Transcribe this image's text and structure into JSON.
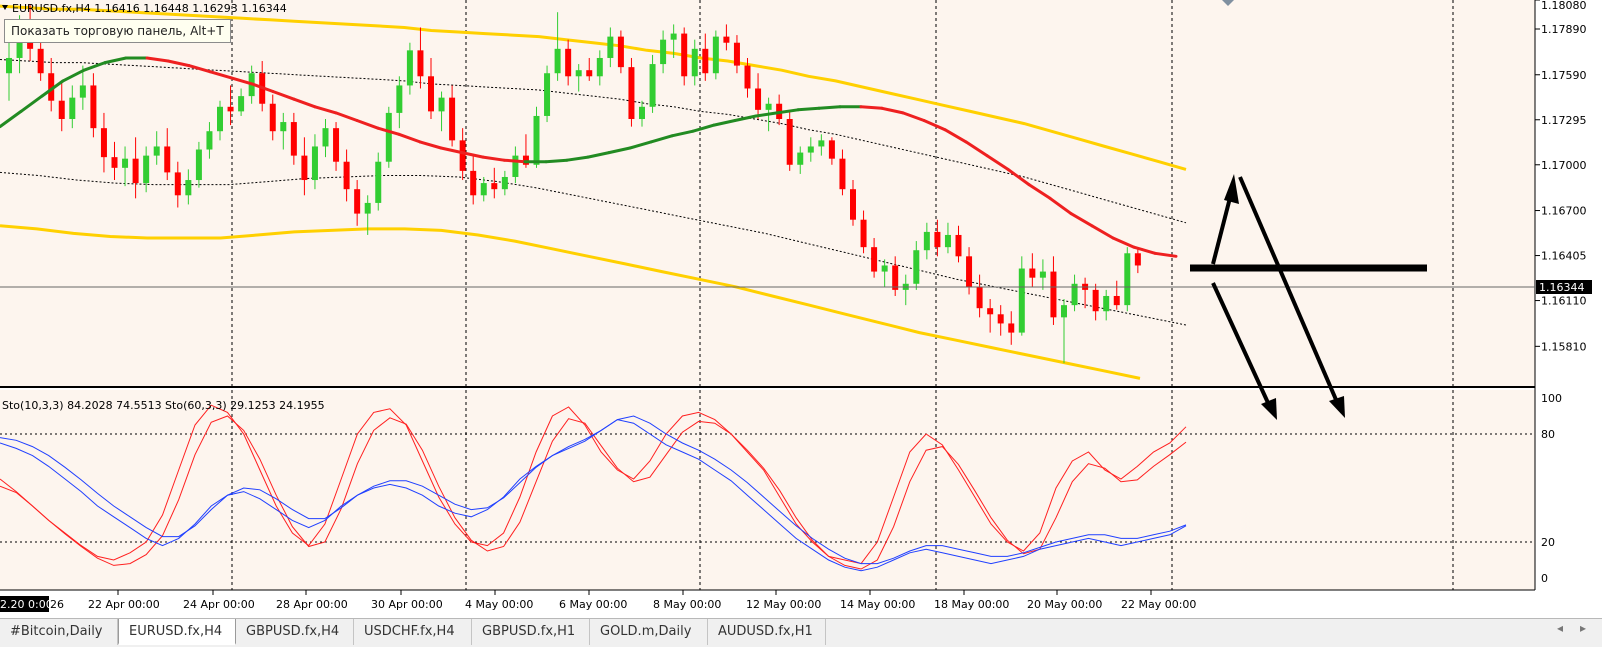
{
  "header": {
    "symbol_line": "EURUSD.fx,H4  1.16416 1.16448 1.16293 1.16344",
    "tooltip": "Показать торговую панель, Alt+T"
  },
  "price_axis": {
    "labels": [
      "1.18080",
      "1.17890",
      "1.17590",
      "1.17295",
      "1.17000",
      "1.16700",
      "1.16405",
      "1.16110",
      "1.15810"
    ],
    "current_price": "1.16344"
  },
  "osc": {
    "label": "Sto(10,3,3) 84.2028 74.5513  Sto(60,3,3) 29.1253 24.1955",
    "levels": [
      "100",
      "80",
      "20",
      "0"
    ]
  },
  "time_axis": {
    "first_label": "2.20 0:00",
    "first_suffix": "26",
    "labels": [
      "22 Apr 00:00",
      "24 Apr 00:00",
      "28 Apr 00:00",
      "30 Apr 00:00",
      "4 May 00:00",
      "6 May 00:00",
      "8 May 00:00",
      "12 May 00:00",
      "14 May 00:00",
      "18 May 00:00",
      "20 May 00:00",
      "22 May 00:00"
    ]
  },
  "tabs": [
    "#Bitcoin,Daily",
    "EURUSD.fx,H4",
    "GBPUSD.fx,H4",
    "USDCHF.fx,H4",
    "GBPUSD.fx,H1",
    "GOLD.m,Daily",
    "AUDUSD.fx,H1"
  ],
  "active_tab": 1,
  "tab_scroll": {
    "left": "◂",
    "right": "▸"
  },
  "colors": {
    "background": "#fdf5ee",
    "bull": "#32cd32",
    "bear": "#ff0000",
    "ma_up": "#228b22",
    "ma_down": "#ee2020",
    "band": "#ffd000",
    "stoch_fast": "#ff2020",
    "stoch_slow": "#2040ff",
    "grid": "#000000"
  },
  "chart_data": {
    "type": "candlestick",
    "symbol": "EURUSD.fx",
    "timeframe": "H4",
    "ylim": [
      1.1555,
      1.1808
    ],
    "current_price": 1.16344,
    "ohlc_last": {
      "open": 1.16416,
      "high": 1.16448,
      "low": 1.16293,
      "close": 1.16344
    },
    "candles": [
      [
        1.176,
        1.1785,
        1.1742,
        1.177
      ],
      [
        1.177,
        1.1798,
        1.176,
        1.178
      ],
      [
        1.178,
        1.1805,
        1.1768,
        1.1776
      ],
      [
        1.1776,
        1.179,
        1.1755,
        1.176
      ],
      [
        1.176,
        1.177,
        1.1735,
        1.1742
      ],
      [
        1.1742,
        1.1755,
        1.1722,
        1.173
      ],
      [
        1.173,
        1.1752,
        1.1724,
        1.1744
      ],
      [
        1.1744,
        1.1765,
        1.1736,
        1.1752
      ],
      [
        1.1752,
        1.176,
        1.1718,
        1.1724
      ],
      [
        1.1724,
        1.1734,
        1.1695,
        1.1705
      ],
      [
        1.1705,
        1.1715,
        1.169,
        1.1698
      ],
      [
        1.1698,
        1.1712,
        1.1686,
        1.1704
      ],
      [
        1.1704,
        1.1718,
        1.1678,
        1.1688
      ],
      [
        1.1688,
        1.1712,
        1.1682,
        1.1706
      ],
      [
        1.1706,
        1.1722,
        1.17,
        1.1712
      ],
      [
        1.1712,
        1.1724,
        1.169,
        1.1695
      ],
      [
        1.1695,
        1.1702,
        1.1672,
        1.168
      ],
      [
        1.168,
        1.1697,
        1.1674,
        1.169
      ],
      [
        1.169,
        1.1715,
        1.1685,
        1.171
      ],
      [
        1.171,
        1.1728,
        1.1704,
        1.1722
      ],
      [
        1.1722,
        1.1742,
        1.1716,
        1.1738
      ],
      [
        1.1738,
        1.1752,
        1.1726,
        1.1735
      ],
      [
        1.1735,
        1.175,
        1.1732,
        1.1745
      ],
      [
        1.1745,
        1.1765,
        1.174,
        1.176
      ],
      [
        1.176,
        1.1768,
        1.1735,
        1.174
      ],
      [
        1.174,
        1.1746,
        1.1716,
        1.1722
      ],
      [
        1.1722,
        1.1734,
        1.171,
        1.1728
      ],
      [
        1.1728,
        1.1734,
        1.17,
        1.1706
      ],
      [
        1.1706,
        1.1718,
        1.168,
        1.169
      ],
      [
        1.169,
        1.172,
        1.1684,
        1.1712
      ],
      [
        1.1712,
        1.173,
        1.1705,
        1.1724
      ],
      [
        1.1724,
        1.1728,
        1.1696,
        1.1702
      ],
      [
        1.1702,
        1.171,
        1.1676,
        1.1684
      ],
      [
        1.1684,
        1.169,
        1.166,
        1.1668
      ],
      [
        1.1668,
        1.168,
        1.1654,
        1.1675
      ],
      [
        1.1675,
        1.1708,
        1.167,
        1.1702
      ],
      [
        1.1702,
        1.1738,
        1.1698,
        1.1734
      ],
      [
        1.1734,
        1.1758,
        1.1724,
        1.1752
      ],
      [
        1.1752,
        1.178,
        1.1746,
        1.1775
      ],
      [
        1.1775,
        1.179,
        1.175,
        1.1758
      ],
      [
        1.1758,
        1.177,
        1.173,
        1.1735
      ],
      [
        1.1735,
        1.1748,
        1.1722,
        1.1744
      ],
      [
        1.1744,
        1.1752,
        1.1712,
        1.1716
      ],
      [
        1.1716,
        1.1724,
        1.169,
        1.1696
      ],
      [
        1.1696,
        1.1706,
        1.1674,
        1.168
      ],
      [
        1.168,
        1.1692,
        1.1676,
        1.1688
      ],
      [
        1.1688,
        1.1698,
        1.1678,
        1.1684
      ],
      [
        1.1684,
        1.1696,
        1.168,
        1.1692
      ],
      [
        1.1692,
        1.1712,
        1.1688,
        1.1706
      ],
      [
        1.1706,
        1.172,
        1.1698,
        1.17
      ],
      [
        1.17,
        1.1738,
        1.1698,
        1.1732
      ],
      [
        1.1732,
        1.1765,
        1.1728,
        1.176
      ],
      [
        1.176,
        1.18,
        1.1755,
        1.1776
      ],
      [
        1.1776,
        1.1782,
        1.1752,
        1.1758
      ],
      [
        1.1758,
        1.1766,
        1.1748,
        1.1762
      ],
      [
        1.1762,
        1.177,
        1.1755,
        1.1758
      ],
      [
        1.1758,
        1.1775,
        1.1752,
        1.177
      ],
      [
        1.177,
        1.179,
        1.1764,
        1.1784
      ],
      [
        1.1784,
        1.1788,
        1.176,
        1.1764
      ],
      [
        1.1764,
        1.177,
        1.1725,
        1.173
      ],
      [
        1.173,
        1.1742,
        1.1725,
        1.1738
      ],
      [
        1.1738,
        1.1772,
        1.1734,
        1.1766
      ],
      [
        1.1766,
        1.1788,
        1.176,
        1.1782
      ],
      [
        1.1782,
        1.1792,
        1.177,
        1.1786
      ],
      [
        1.1786,
        1.179,
        1.1752,
        1.1758
      ],
      [
        1.1758,
        1.1782,
        1.1752,
        1.1776
      ],
      [
        1.1776,
        1.1786,
        1.1755,
        1.176
      ],
      [
        1.176,
        1.1788,
        1.1756,
        1.1784
      ],
      [
        1.1784,
        1.1792,
        1.1775,
        1.178
      ],
      [
        1.178,
        1.1785,
        1.176,
        1.1765
      ],
      [
        1.1765,
        1.177,
        1.1744,
        1.175
      ],
      [
        1.175,
        1.176,
        1.173,
        1.1736
      ],
      [
        1.1736,
        1.1744,
        1.1722,
        1.174
      ],
      [
        1.174,
        1.1746,
        1.1726,
        1.173
      ],
      [
        1.173,
        1.1735,
        1.1696,
        1.17
      ],
      [
        1.17,
        1.1712,
        1.1694,
        1.1708
      ],
      [
        1.1708,
        1.1718,
        1.1702,
        1.1712
      ],
      [
        1.1712,
        1.172,
        1.1706,
        1.1716
      ],
      [
        1.1716,
        1.1718,
        1.17,
        1.1704
      ],
      [
        1.1704,
        1.171,
        1.168,
        1.1684
      ],
      [
        1.1684,
        1.169,
        1.166,
        1.1664
      ],
      [
        1.1664,
        1.167,
        1.1642,
        1.1646
      ],
      [
        1.1646,
        1.1652,
        1.1626,
        1.163
      ],
      [
        1.163,
        1.1638,
        1.162,
        1.1634
      ],
      [
        1.1634,
        1.164,
        1.1614,
        1.1618
      ],
      [
        1.1618,
        1.1628,
        1.1608,
        1.1622
      ],
      [
        1.1622,
        1.165,
        1.1618,
        1.1644
      ],
      [
        1.1644,
        1.1662,
        1.1638,
        1.1656
      ],
      [
        1.1656,
        1.1664,
        1.164,
        1.1646
      ],
      [
        1.1646,
        1.1662,
        1.1642,
        1.1654
      ],
      [
        1.1654,
        1.166,
        1.1636,
        1.164
      ],
      [
        1.164,
        1.1646,
        1.1615,
        1.162
      ],
      [
        1.162,
        1.1628,
        1.16,
        1.1606
      ],
      [
        1.1606,
        1.1612,
        1.159,
        1.1602
      ],
      [
        1.1602,
        1.1608,
        1.1588,
        1.1596
      ],
      [
        1.1596,
        1.1604,
        1.1582,
        1.159
      ],
      [
        1.159,
        1.164,
        1.1588,
        1.1632
      ],
      [
        1.1632,
        1.1642,
        1.162,
        1.1626
      ],
      [
        1.1626,
        1.1638,
        1.1618,
        1.163
      ],
      [
        1.163,
        1.164,
        1.1595,
        1.16
      ],
      [
        1.16,
        1.1612,
        1.157,
        1.1608
      ],
      [
        1.1608,
        1.1628,
        1.1604,
        1.1622
      ],
      [
        1.1622,
        1.1626,
        1.1606,
        1.1618
      ],
      [
        1.1618,
        1.1622,
        1.1598,
        1.1604
      ],
      [
        1.1604,
        1.1618,
        1.1598,
        1.1614
      ],
      [
        1.1614,
        1.1624,
        1.1605,
        1.1608
      ],
      [
        1.1608,
        1.1646,
        1.1604,
        1.1642
      ],
      [
        1.1642,
        1.1645,
        1.1629,
        1.1634
      ]
    ],
    "moving_average": [
      1.1725,
      1.1735,
      1.1745,
      1.1755,
      1.1762,
      1.1767,
      1.177,
      1.177,
      1.1768,
      1.1765,
      1.1761,
      1.1757,
      1.1753,
      1.1748,
      1.1743,
      1.1738,
      1.1734,
      1.1729,
      1.1724,
      1.172,
      1.1715,
      1.1711,
      1.1708,
      1.1705,
      1.1703,
      1.1702,
      1.1702,
      1.1703,
      1.1705,
      1.1708,
      1.1711,
      1.1715,
      1.1719,
      1.1722,
      1.1726,
      1.1729,
      1.1732,
      1.1734,
      1.1736,
      1.1737,
      1.1738,
      1.1738,
      1.1737,
      1.1734,
      1.1729,
      1.1723,
      1.1715,
      1.1706,
      1.1697,
      1.1687,
      1.1678,
      1.1668,
      1.166,
      1.1652,
      1.1646,
      1.1642,
      1.164
    ],
    "band_upper": [
      1.1804,
      1.1803,
      1.1802,
      1.1802,
      1.1801,
      1.18,
      1.1799,
      1.1798,
      1.1797,
      1.1796,
      1.1795,
      1.1794,
      1.1793,
      1.1792,
      1.1791,
      1.179,
      1.1788,
      1.1787,
      1.1786,
      1.1785,
      1.1784,
      1.1782,
      1.178,
      1.1778,
      1.1775,
      1.1773,
      1.177,
      1.1768,
      1.1765,
      1.1762,
      1.1758,
      1.1755,
      1.1751,
      1.1747,
      1.1743,
      1.1739,
      1.1735,
      1.1731,
      1.1727,
      1.1722,
      1.1717,
      1.1712,
      1.1707,
      1.1702,
      1.1697
    ],
    "band_lower": [
      1.166,
      1.1658,
      1.1655,
      1.1653,
      1.1652,
      1.1652,
      1.1652,
      1.1654,
      1.1656,
      1.1657,
      1.1658,
      1.1658,
      1.1657,
      1.1654,
      1.165,
      1.1645,
      1.164,
      1.1635,
      1.163,
      1.1625,
      1.162,
      1.1614,
      1.1608,
      1.1602,
      1.1596,
      1.159,
      1.1585,
      1.158,
      1.1575,
      1.157
    ],
    "stoch_fast": [
      55,
      48,
      40,
      32,
      25,
      18,
      12,
      10,
      14,
      20,
      35,
      60,
      85,
      96,
      92,
      80,
      60,
      40,
      25,
      18,
      30,
      55,
      80,
      92,
      94,
      85,
      65,
      45,
      30,
      20,
      18,
      25,
      45,
      70,
      90,
      95,
      85,
      70,
      60,
      55,
      65,
      80,
      90,
      92,
      88,
      80,
      70,
      60,
      45,
      30,
      20,
      12,
      10,
      8,
      20,
      45,
      70,
      80,
      74,
      60,
      45,
      30,
      20,
      15,
      25,
      50,
      65,
      70,
      60,
      55,
      62,
      70,
      75,
      84
    ],
    "stoch_slow": [
      75,
      72,
      68,
      62,
      55,
      48,
      40,
      34,
      28,
      22,
      18,
      22,
      30,
      40,
      46,
      48,
      44,
      38,
      32,
      28,
      32,
      40,
      46,
      50,
      52,
      50,
      46,
      40,
      36,
      34,
      38,
      45,
      55,
      62,
      68,
      72,
      76,
      82,
      88,
      86,
      80,
      74,
      70,
      66,
      60,
      54,
      46,
      38,
      30,
      22,
      16,
      10,
      6,
      4,
      6,
      10,
      14,
      16,
      14,
      12,
      10,
      8,
      10,
      12,
      16,
      18,
      20,
      22,
      20,
      18,
      20,
      22,
      24,
      29
    ],
    "stoch_levels": [
      100,
      80,
      20,
      0
    ]
  }
}
